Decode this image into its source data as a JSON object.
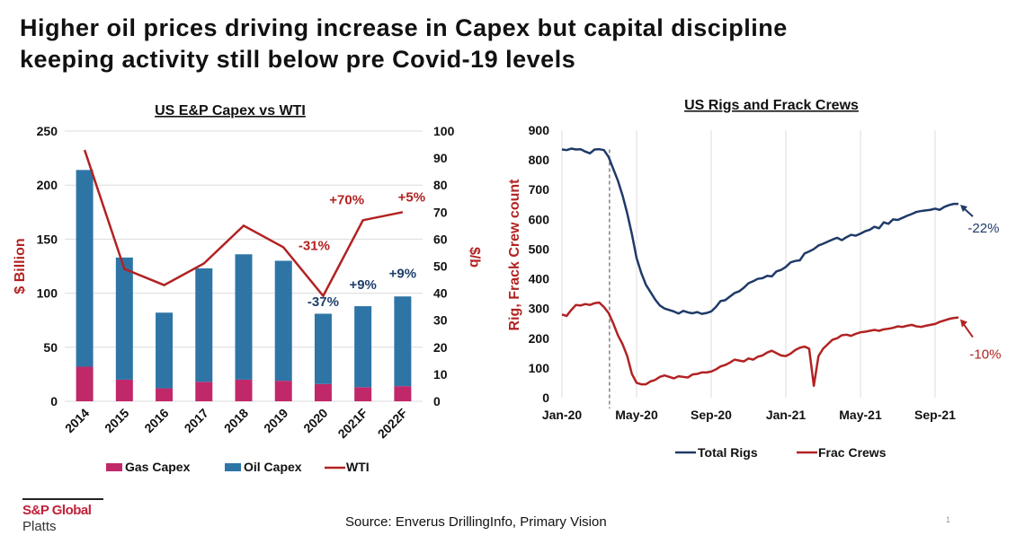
{
  "slide": {
    "title_line1": "Higher oil prices driving increase in Capex but capital discipline",
    "title_line2": "keeping activity still below pre Covid-19 levels",
    "logo_brand": "S&P Global",
    "logo_sub": "Platts",
    "source": "Source: Enverus DrillingInfo, Primary Vision",
    "page_number": "1"
  },
  "chart_data": [
    {
      "type": "bar",
      "stacked": true,
      "title": "US E&P Capex vs WTI",
      "categories": [
        "2014",
        "2015",
        "2016",
        "2017",
        "2018",
        "2019",
        "2020",
        "2021F",
        "2022F"
      ],
      "series": [
        {
          "name": "Gas Capex",
          "type": "bar",
          "axis": "left",
          "color": "#c0286a",
          "values": [
            32,
            20,
            12,
            18,
            20,
            19,
            16,
            13,
            14
          ]
        },
        {
          "name": "Oil Capex",
          "type": "bar",
          "axis": "left",
          "color": "#2e75a6",
          "values": [
            182,
            113,
            70,
            105,
            116,
            111,
            65,
            75,
            83
          ]
        },
        {
          "name": "WTI",
          "type": "line",
          "axis": "right",
          "color": "#b22222",
          "values": [
            93,
            49,
            43,
            51,
            65,
            57,
            39,
            67,
            70
          ]
        }
      ],
      "ylabel": "$ Billion",
      "ylim": [
        0,
        250
      ],
      "yticks": [
        "0",
        "50",
        "100",
        "150",
        "200",
        "250"
      ],
      "y2label": "$/b",
      "y2lim": [
        0,
        100
      ],
      "y2ticks": [
        "0",
        "10",
        "20",
        "30",
        "40",
        "50",
        "60",
        "70",
        "80",
        "90",
        "100"
      ],
      "grid": true,
      "legend": "bottom",
      "annotations": [
        {
          "text": "-31%",
          "color": "#b22222",
          "category": "2020",
          "value": 56,
          "axis": "right"
        },
        {
          "text": "+70%",
          "color": "#b22222",
          "category": "2021F",
          "value": 73,
          "axis": "right"
        },
        {
          "text": "+5%",
          "color": "#b22222",
          "category": "2022F",
          "value": 74,
          "axis": "right"
        },
        {
          "text": "-37%",
          "color": "#1f3f6b",
          "category": "2020",
          "value": 88,
          "axis": "left"
        },
        {
          "text": "+9%",
          "color": "#1f3f6b",
          "category": "2021F",
          "value": 104,
          "axis": "left"
        },
        {
          "text": "+9%",
          "color": "#1f3f6b",
          "category": "2022F",
          "value": 114,
          "axis": "left"
        }
      ]
    },
    {
      "type": "line",
      "title": "US Rigs and Frack Crews",
      "x_ticks": [
        "Jan-20",
        "May-20",
        "Sep-20",
        "Jan-21",
        "May-21",
        "Sep-21"
      ],
      "x_range_months": [
        0,
        22
      ],
      "ylabel": "Rig, Frack Crew count",
      "ylim": [
        0,
        900
      ],
      "yticks": [
        "0",
        "100",
        "200",
        "300",
        "400",
        "500",
        "600",
        "700",
        "800",
        "900"
      ],
      "grid": true,
      "legend": "bottom",
      "vline_month": 2.55,
      "series": [
        {
          "name": "Total Rigs",
          "color": "#1f3a68",
          "x": [
            0,
            0.25,
            0.5,
            0.75,
            1.0,
            1.25,
            1.5,
            1.75,
            2.0,
            2.25,
            2.5,
            2.75,
            3.0,
            3.25,
            3.5,
            3.75,
            4.0,
            4.25,
            4.5,
            4.75,
            5.0,
            5.25,
            5.5,
            5.75,
            6.0,
            6.25,
            6.5,
            6.75,
            7.0,
            7.25,
            7.5,
            7.75,
            8.0,
            8.25,
            8.5,
            8.75,
            9.0,
            9.25,
            9.5,
            9.75,
            10.0,
            10.25,
            10.5,
            10.75,
            11.0,
            11.25,
            11.5,
            11.75,
            12.0,
            12.25,
            12.5,
            12.75,
            13.0,
            13.25,
            13.5,
            13.75,
            14.0,
            14.25,
            14.5,
            14.75,
            15.0,
            15.25,
            15.5,
            15.75,
            16.0,
            16.25,
            16.5,
            16.75,
            17.0,
            17.25,
            17.5,
            17.75,
            18.0,
            18.25,
            18.5,
            18.75,
            19.0,
            19.25,
            19.5,
            19.75,
            20.0,
            20.25,
            20.5,
            20.75,
            21.0,
            21.25
          ],
          "values": [
            835,
            833,
            838,
            835,
            836,
            828,
            822,
            835,
            836,
            833,
            810,
            770,
            730,
            680,
            620,
            550,
            470,
            420,
            380,
            355,
            330,
            310,
            300,
            295,
            290,
            283,
            292,
            287,
            284,
            288,
            282,
            285,
            290,
            305,
            325,
            328,
            340,
            352,
            358,
            370,
            385,
            392,
            400,
            402,
            410,
            408,
            425,
            430,
            440,
            455,
            460,
            462,
            485,
            492,
            500,
            512,
            518,
            525,
            532,
            538,
            530,
            540,
            548,
            545,
            552,
            560,
            565,
            575,
            570,
            590,
            585,
            600,
            598,
            605,
            612,
            618,
            625,
            628,
            630,
            632,
            636,
            632,
            642,
            648,
            652,
            652
          ]
        },
        {
          "name": "Frac Crews",
          "color": "#b22222",
          "x": [
            0,
            0.25,
            0.5,
            0.75,
            1.0,
            1.25,
            1.5,
            1.75,
            2.0,
            2.25,
            2.5,
            2.75,
            3.0,
            3.25,
            3.5,
            3.75,
            4.0,
            4.25,
            4.5,
            4.75,
            5.0,
            5.25,
            5.5,
            5.75,
            6.0,
            6.25,
            6.5,
            6.75,
            7.0,
            7.25,
            7.5,
            7.75,
            8.0,
            8.25,
            8.5,
            8.75,
            9.0,
            9.25,
            9.5,
            9.75,
            10.0,
            10.25,
            10.5,
            10.75,
            11.0,
            11.25,
            11.5,
            11.75,
            12.0,
            12.25,
            12.5,
            12.75,
            13.0,
            13.25,
            13.5,
            13.75,
            14.0,
            14.25,
            14.5,
            14.75,
            15.0,
            15.25,
            15.5,
            15.75,
            16.0,
            16.25,
            16.5,
            16.75,
            17.0,
            17.25,
            17.5,
            17.75,
            18.0,
            18.25,
            18.5,
            18.75,
            19.0,
            19.25,
            19.5,
            19.75,
            20.0,
            20.25,
            20.5,
            20.75,
            21.0,
            21.25
          ],
          "values": [
            280,
            275,
            295,
            312,
            310,
            315,
            312,
            318,
            320,
            305,
            285,
            250,
            210,
            180,
            140,
            80,
            50,
            45,
            45,
            55,
            60,
            70,
            75,
            70,
            65,
            72,
            70,
            68,
            78,
            80,
            85,
            85,
            88,
            95,
            105,
            110,
            118,
            128,
            125,
            122,
            132,
            128,
            138,
            142,
            152,
            158,
            150,
            142,
            140,
            148,
            160,
            168,
            172,
            165,
            40,
            140,
            165,
            180,
            195,
            200,
            210,
            212,
            208,
            215,
            220,
            222,
            225,
            228,
            225,
            230,
            232,
            235,
            240,
            238,
            242,
            245,
            240,
            238,
            242,
            245,
            248,
            255,
            260,
            265,
            268,
            270
          ]
        }
      ],
      "annotations": [
        {
          "text": "-22%",
          "color": "#1f3a68",
          "series": "Total Rigs"
        },
        {
          "text": "-10%",
          "color": "#b22222",
          "series": "Frac Crews"
        }
      ]
    }
  ]
}
